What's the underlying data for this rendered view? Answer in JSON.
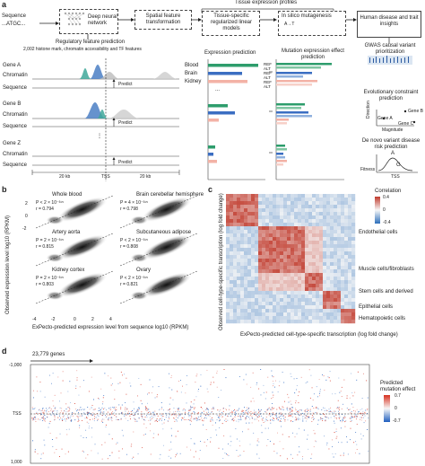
{
  "panel_a": {
    "letter": "a",
    "tissue_profiles": "Tissue expression profiles",
    "sequence_label": "Sequence",
    "sequence_value": "...ATGC...",
    "step_dnn": "Deep neural network",
    "step_spatial": "Spatial feature transformation",
    "step_tissue": "Tissue-specific regularized linear models",
    "step_insilico": "In silico mutagenesis",
    "step_insilico_sub": "A→T",
    "step_human": "Human disease and trait insights",
    "reg_title": "Regulatory feature prediction",
    "reg_sub": "2,002 histone mark, chromatin accessibility and TF features",
    "expr_pred": "Expression prediction",
    "mut_pred": "Mutation expression effect prediction",
    "genes": [
      {
        "name": "Gene A",
        "chromatin": "Chromatin",
        "sequence": "Sequence",
        "predict": "Predict"
      },
      {
        "name": "Gene B",
        "chromatin": "Chromatin",
        "sequence": "Sequence",
        "predict": "Predict"
      },
      {
        "name": "Gene Z",
        "chromatin": "Chromatin",
        "sequence": "Sequence",
        "predict": "Predict"
      }
    ],
    "tissues": [
      "Blood",
      "Brain",
      "Kidney",
      "..."
    ],
    "ref": "REF",
    "alt": "ALT",
    "scale_left": "20 kb",
    "tss": "TSS",
    "scale_right": "20 kb",
    "gwas": "GWAS causal variant prioritization",
    "evo": "Evolutionary constraint prediction",
    "direction": "Direction",
    "magnitude": "Magnitude",
    "gene_a": "Gene A",
    "gene_b": "Gene B",
    "gene_c": "Gene C",
    "denovo": "De novo variant disease risk prediction",
    "fitness": "Fitness",
    "allele_a": "A",
    "allele_g": "G",
    "tss_small": "TSS"
  },
  "panel_b": {
    "letter": "b",
    "ylabel": "Observed expression level log10 (RPKM)",
    "xlabel": "ExPecto-predicted expression level from sequence log10 (RPKM)",
    "yticks": [
      "2",
      "0",
      "-2"
    ],
    "xticks": [
      "-4",
      "-2",
      "0",
      "2",
      "4"
    ],
    "tissues": [
      {
        "name": "Whole blood",
        "p": "P < 2 × 10⁻³¹⁵",
        "r": "r = 0.794"
      },
      {
        "name": "Brain cerebellar hemisphere",
        "p": "P = 4 × 10⁻³¹⁵",
        "r": "r = 0.798"
      },
      {
        "name": "Artery aorta",
        "p": "P = 2 × 10⁻³¹⁵",
        "r": "r = 0.815"
      },
      {
        "name": "Subcutaneous adipose",
        "p": "P < 2 × 10⁻³¹⁵",
        "r": "r = 0.808"
      },
      {
        "name": "Kidney cortex",
        "p": "P = 2 × 10⁻³¹⁵",
        "r": "r = 0.803"
      },
      {
        "name": "Ovary",
        "p": "P < 2 × 10⁻³¹⁵",
        "r": "r = 0.821"
      }
    ]
  },
  "panel_c": {
    "letter": "c",
    "ylabel": "Observed cell-type-specific transcription (log fold change)",
    "xlabel": "ExPecto-predicted cell-type-specific transcription (log fold change)",
    "legend_title": "Correlation",
    "legend_ticks": [
      "0.4",
      "0",
      "-0.4"
    ],
    "groups": [
      "Endothelial cells",
      "Muscle cells/fibroblasts",
      "Stem cells and derived",
      "Epithelial cells",
      "Hematopoietic cells"
    ],
    "colors": {
      "high": "#c0392b",
      "mid": "#f7f7f7",
      "low": "#2c6fbb"
    }
  },
  "panel_d": {
    "letter": "d",
    "genes_label": "23,779 genes",
    "yticks": [
      "-1,000",
      "TSS",
      "1,000"
    ],
    "legend_title": "Predicted mutation effect",
    "legend_ticks": [
      "0.7",
      "0",
      "-0.7"
    ]
  }
}
